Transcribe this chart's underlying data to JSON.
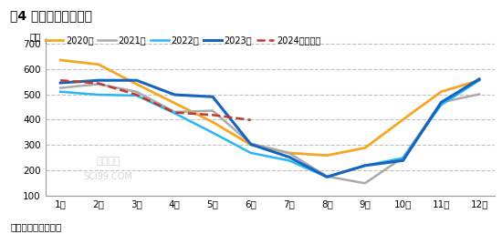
{
  "title": "图4 全国棉花商业库存",
  "ylabel": "万吨",
  "source": "数据来源：卓创资讯",
  "months": [
    "1月",
    "2月",
    "3月",
    "4月",
    "5月",
    "6月",
    "7月",
    "8月",
    "9月",
    "10月",
    "11月",
    "12月"
  ],
  "series": [
    {
      "label": "2020年",
      "color": "#f5a623",
      "linewidth": 2.0,
      "linestyle": "-",
      "values": [
        635,
        618,
        540,
        465,
        390,
        300,
        268,
        258,
        288,
        400,
        510,
        555
      ]
    },
    {
      "label": "2021年",
      "color": "#aaaaaa",
      "linewidth": 1.8,
      "linestyle": "-",
      "values": [
        525,
        540,
        510,
        430,
        435,
        305,
        268,
        175,
        148,
        250,
        468,
        500
      ]
    },
    {
      "label": "2022年",
      "color": "#29b6f6",
      "linewidth": 1.8,
      "linestyle": "-",
      "values": [
        510,
        498,
        495,
        425,
        348,
        268,
        238,
        173,
        218,
        248,
        458,
        555
      ]
    },
    {
      "label": "2023年",
      "color": "#1565c0",
      "linewidth": 2.2,
      "linestyle": "-",
      "values": [
        545,
        555,
        555,
        498,
        490,
        302,
        252,
        173,
        218,
        238,
        468,
        560
      ]
    },
    {
      "label": "2024年及预测",
      "color": "#c0392b",
      "linewidth": 1.8,
      "linestyle": "--",
      "values": [
        555,
        543,
        498,
        428,
        418,
        398,
        null,
        null,
        null,
        null,
        null,
        null
      ]
    }
  ],
  "ylim": [
    100,
    720
  ],
  "yticks": [
    100,
    200,
    300,
    400,
    500,
    600,
    700
  ],
  "background_color": "#ffffff",
  "grid_color": "#c0c0c0",
  "watermark1": "卓创资讯",
  "watermark2": "SCI99.COM"
}
